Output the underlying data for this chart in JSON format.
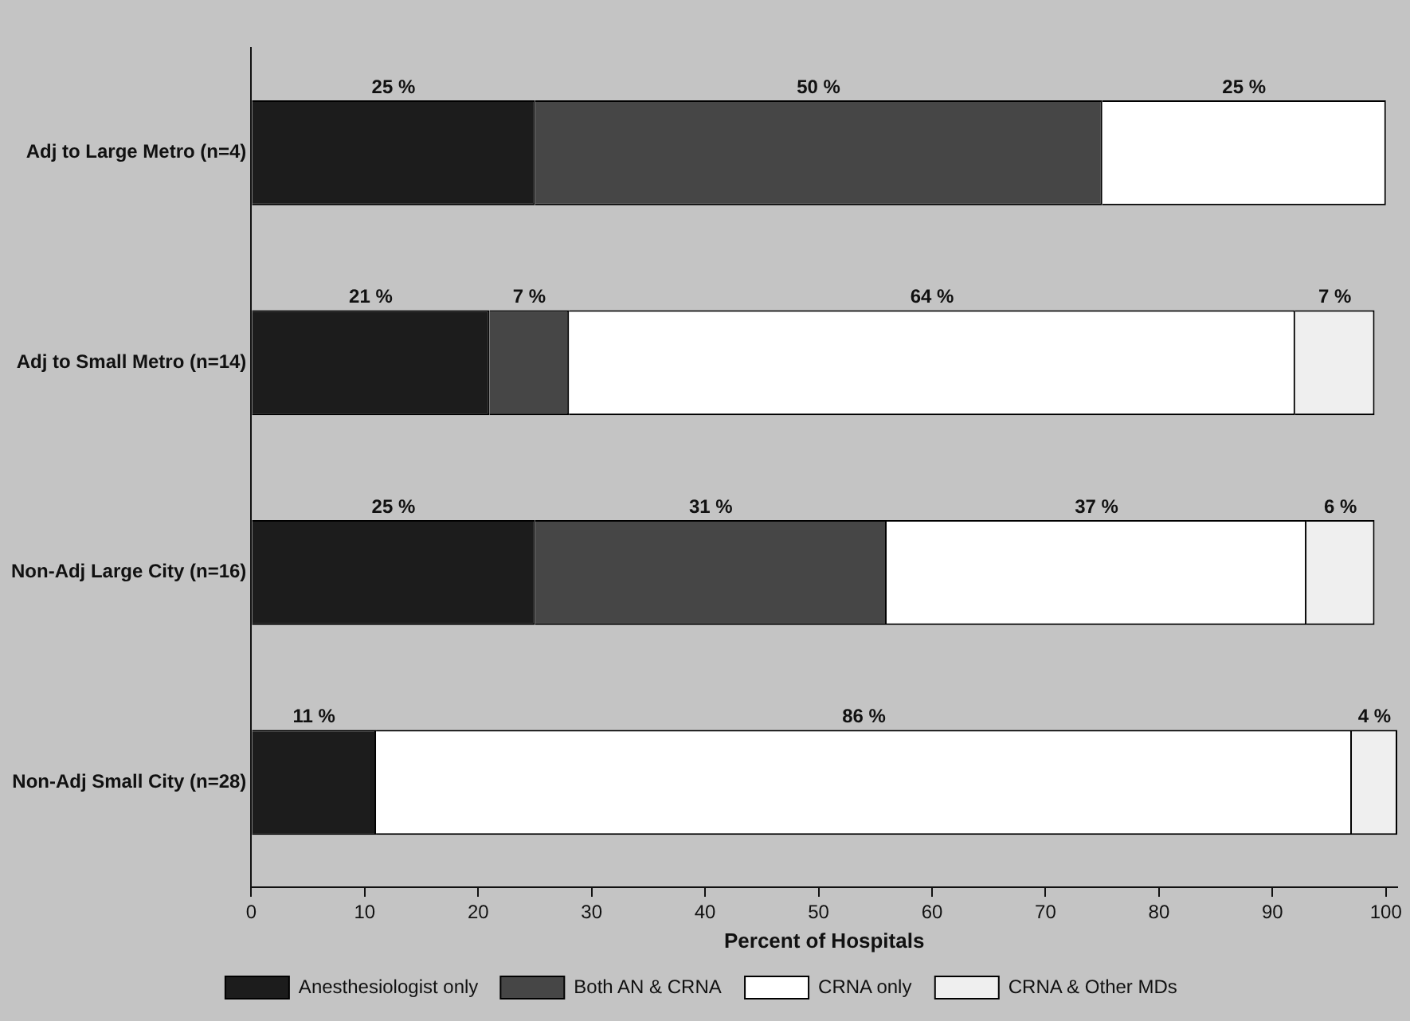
{
  "chart_data": {
    "type": "bar",
    "orientation": "horizontal",
    "stacked": true,
    "xlabel": "Percent of Hospitals",
    "categories": [
      "Adj to Large Metro (n=4)",
      "Adj to Small Metro (n=14)",
      "Non-Adj Large City (n=16)",
      "Non-Adj Small City (n=28)"
    ],
    "xlim": [
      0,
      101
    ],
    "xticks": [
      0,
      10,
      20,
      30,
      40,
      50,
      60,
      70,
      80,
      90,
      100
    ],
    "legend": "bottom",
    "grid": false,
    "series": [
      {
        "name": "Anesthesiologist only",
        "color": "#1c1c1c",
        "values": [
          25,
          21,
          25,
          11
        ],
        "value_labels": [
          "25 %",
          "21 %",
          "25 %",
          "11 %"
        ]
      },
      {
        "name": "Both AN & CRNA",
        "color": "#464646",
        "values": [
          50,
          7,
          31,
          null
        ],
        "value_labels": [
          "50 %",
          "7 %",
          "31 %",
          null
        ]
      },
      {
        "name": "CRNA only",
        "color": "#ffffff",
        "values": [
          25,
          64,
          37,
          86
        ],
        "value_labels": [
          "25 %",
          "64 %",
          "37 %",
          "86 %"
        ]
      },
      {
        "name": "CRNA & Other MDs",
        "color": "#efefef",
        "values": [
          null,
          7,
          6,
          4
        ],
        "value_labels": [
          null,
          "7 %",
          "6 %",
          "4 %"
        ]
      }
    ]
  }
}
